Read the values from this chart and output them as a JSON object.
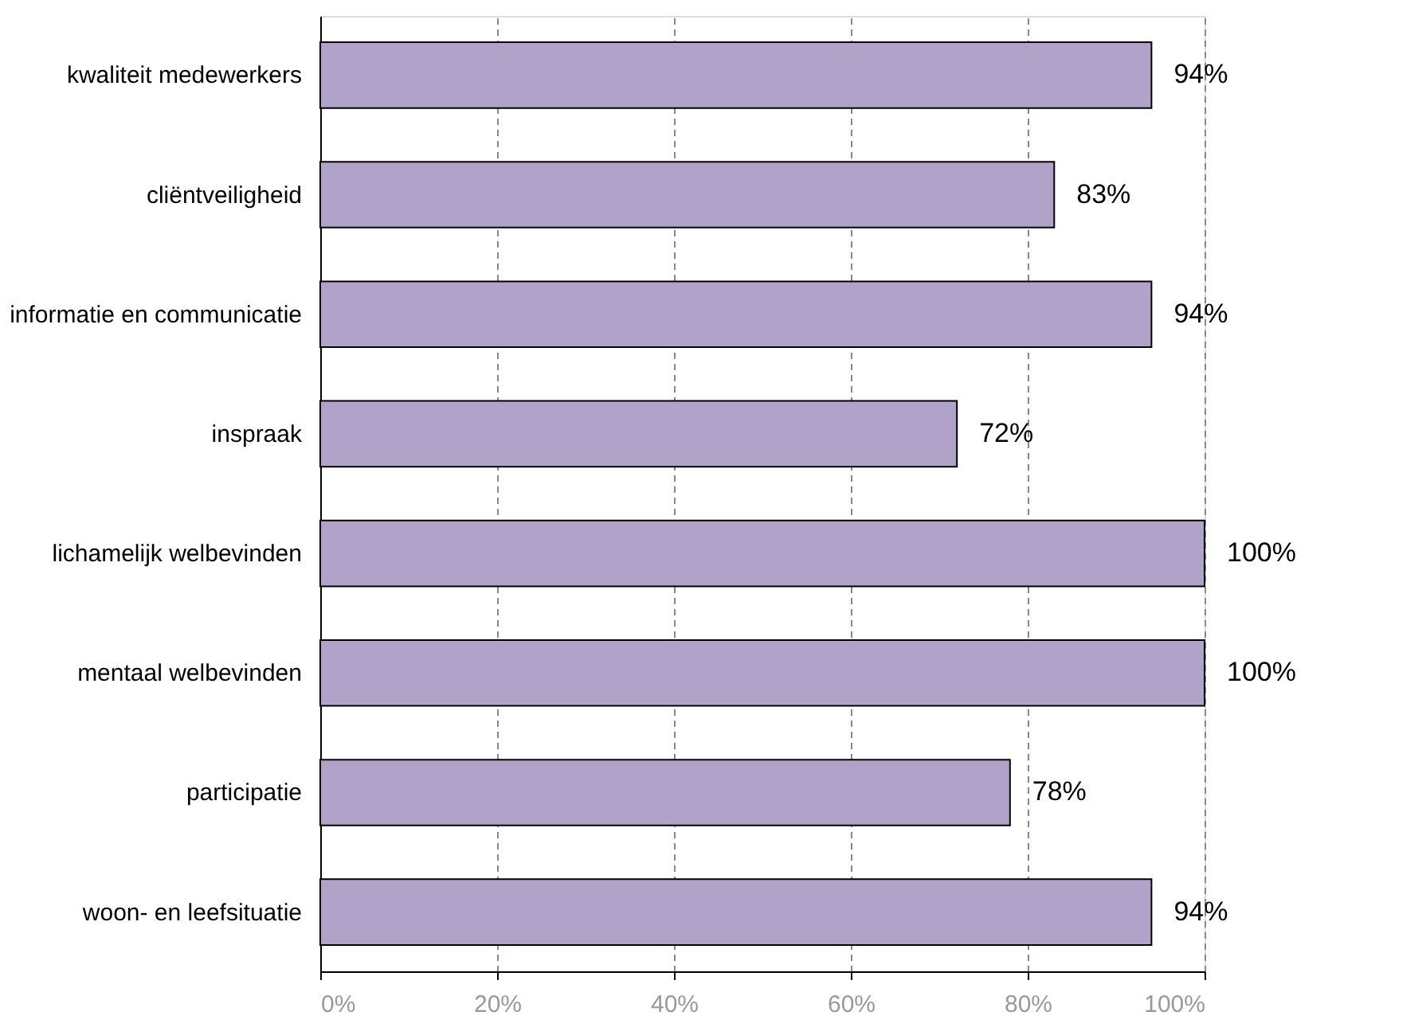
{
  "chart_data": {
    "type": "bar",
    "orientation": "horizontal",
    "categories": [
      "kwaliteit medewerkers",
      "cliëntveiligheid",
      "informatie en communicatie",
      "inspraak",
      "lichamelijk welbevinden",
      "mentaal welbevinden",
      "participatie",
      "woon- en leefsituatie"
    ],
    "values": [
      94,
      83,
      94,
      72,
      100,
      100,
      78,
      94
    ],
    "value_labels": [
      "94%",
      "83%",
      "94%",
      "72%",
      "100%",
      "100%",
      "78%",
      "94%"
    ],
    "color": "#b0a2c9",
    "xlim": [
      0,
      100
    ],
    "xticks": [
      {
        "value": 0,
        "label": "0%"
      },
      {
        "value": 20,
        "label": "20%"
      },
      {
        "value": 40,
        "label": "40%"
      },
      {
        "value": 60,
        "label": "60%"
      },
      {
        "value": 80,
        "label": "80%"
      },
      {
        "value": 100,
        "label": "100%"
      }
    ],
    "grid": "x"
  }
}
